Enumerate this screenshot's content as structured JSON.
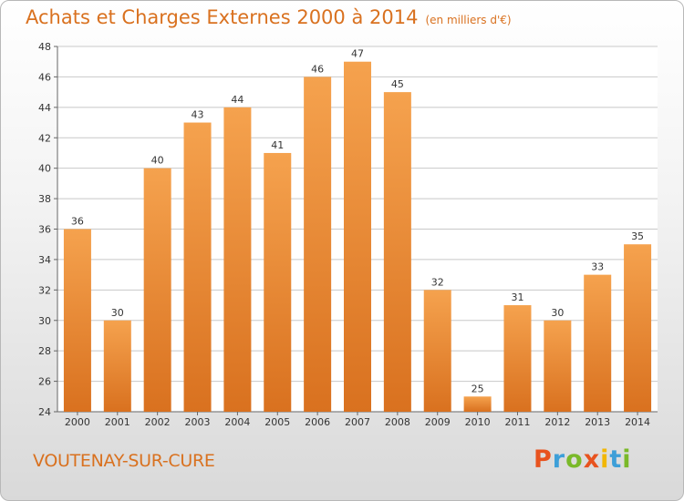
{
  "header": {
    "title": "Achats et Charges Externes 2000 à 2014",
    "subtitle": "(en milliers d'€)"
  },
  "footer": {
    "commune": "VOUTENAY-SUR-CURE",
    "logo_text": "Proxiti",
    "logo_colors": [
      "#e8531f",
      "#3d9fd8",
      "#7ab929",
      "#e8531f",
      "#f2b705",
      "#3d9fd8",
      "#7ab929"
    ]
  },
  "colors": {
    "bar_top": "#f5a24e",
    "bar_bottom": "#d9711f",
    "title": "#d9711f",
    "grid": "#c8c8c8"
  },
  "chart_data": {
    "type": "bar",
    "title": "Achats et Charges Externes 2000 à 2014",
    "subtitle": "(en milliers d'€)",
    "categories": [
      "2000",
      "2001",
      "2002",
      "2003",
      "2004",
      "2005",
      "2006",
      "2007",
      "2008",
      "2009",
      "2010",
      "2011",
      "2012",
      "2013",
      "2014"
    ],
    "values": [
      36,
      30,
      40,
      43,
      44,
      41,
      46,
      47,
      45,
      32,
      25,
      31,
      30,
      33,
      35
    ],
    "ylim": [
      24,
      48
    ],
    "yticks": [
      24,
      26,
      28,
      30,
      32,
      34,
      36,
      38,
      40,
      42,
      44,
      46,
      48
    ],
    "grid": true
  }
}
